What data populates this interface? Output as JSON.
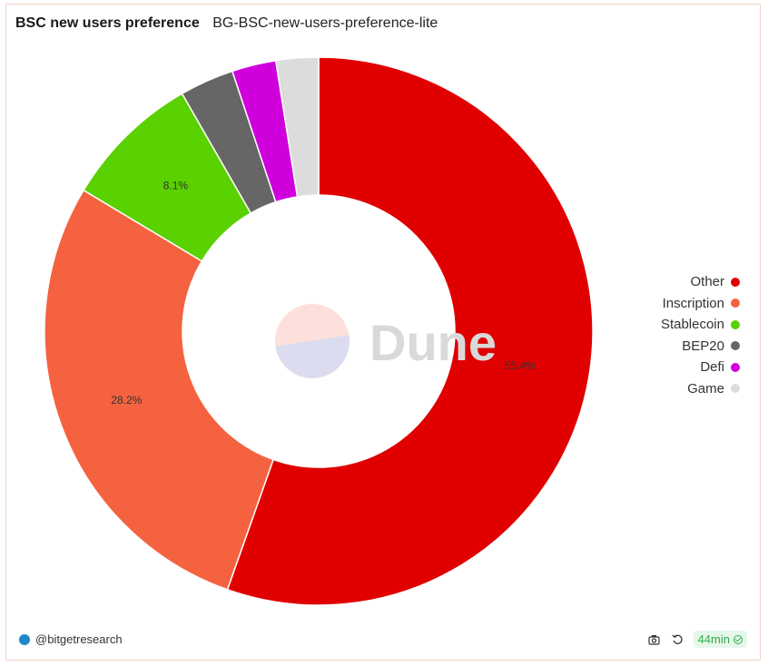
{
  "header": {
    "title": "BSC new users preference",
    "subtitle": "BG-BSC-new-users-preference-lite"
  },
  "watermark": {
    "text": "Dune"
  },
  "chart_data": {
    "type": "pie",
    "donut": true,
    "title": "BSC new users preference",
    "categories": [
      "Other",
      "Inscription",
      "Stablecoin",
      "BEP20",
      "Defi",
      "Game"
    ],
    "values": [
      55.4,
      28.2,
      8.1,
      3.2,
      2.6,
      2.5
    ],
    "data_labels": [
      "55.4%",
      "28.2%",
      "8.1%",
      "",
      "",
      ""
    ],
    "colors": [
      "#e00000",
      "#f46240",
      "#5ad100",
      "#666666",
      "#d000dc",
      "#dcdcdc"
    ],
    "legend": "right"
  },
  "footer": {
    "author": "@bitgetresearch",
    "refresh_age": "44min",
    "camera_icon": "camera-icon",
    "refresh_icon": "refresh-icon",
    "check_icon": "check-circle-icon"
  }
}
